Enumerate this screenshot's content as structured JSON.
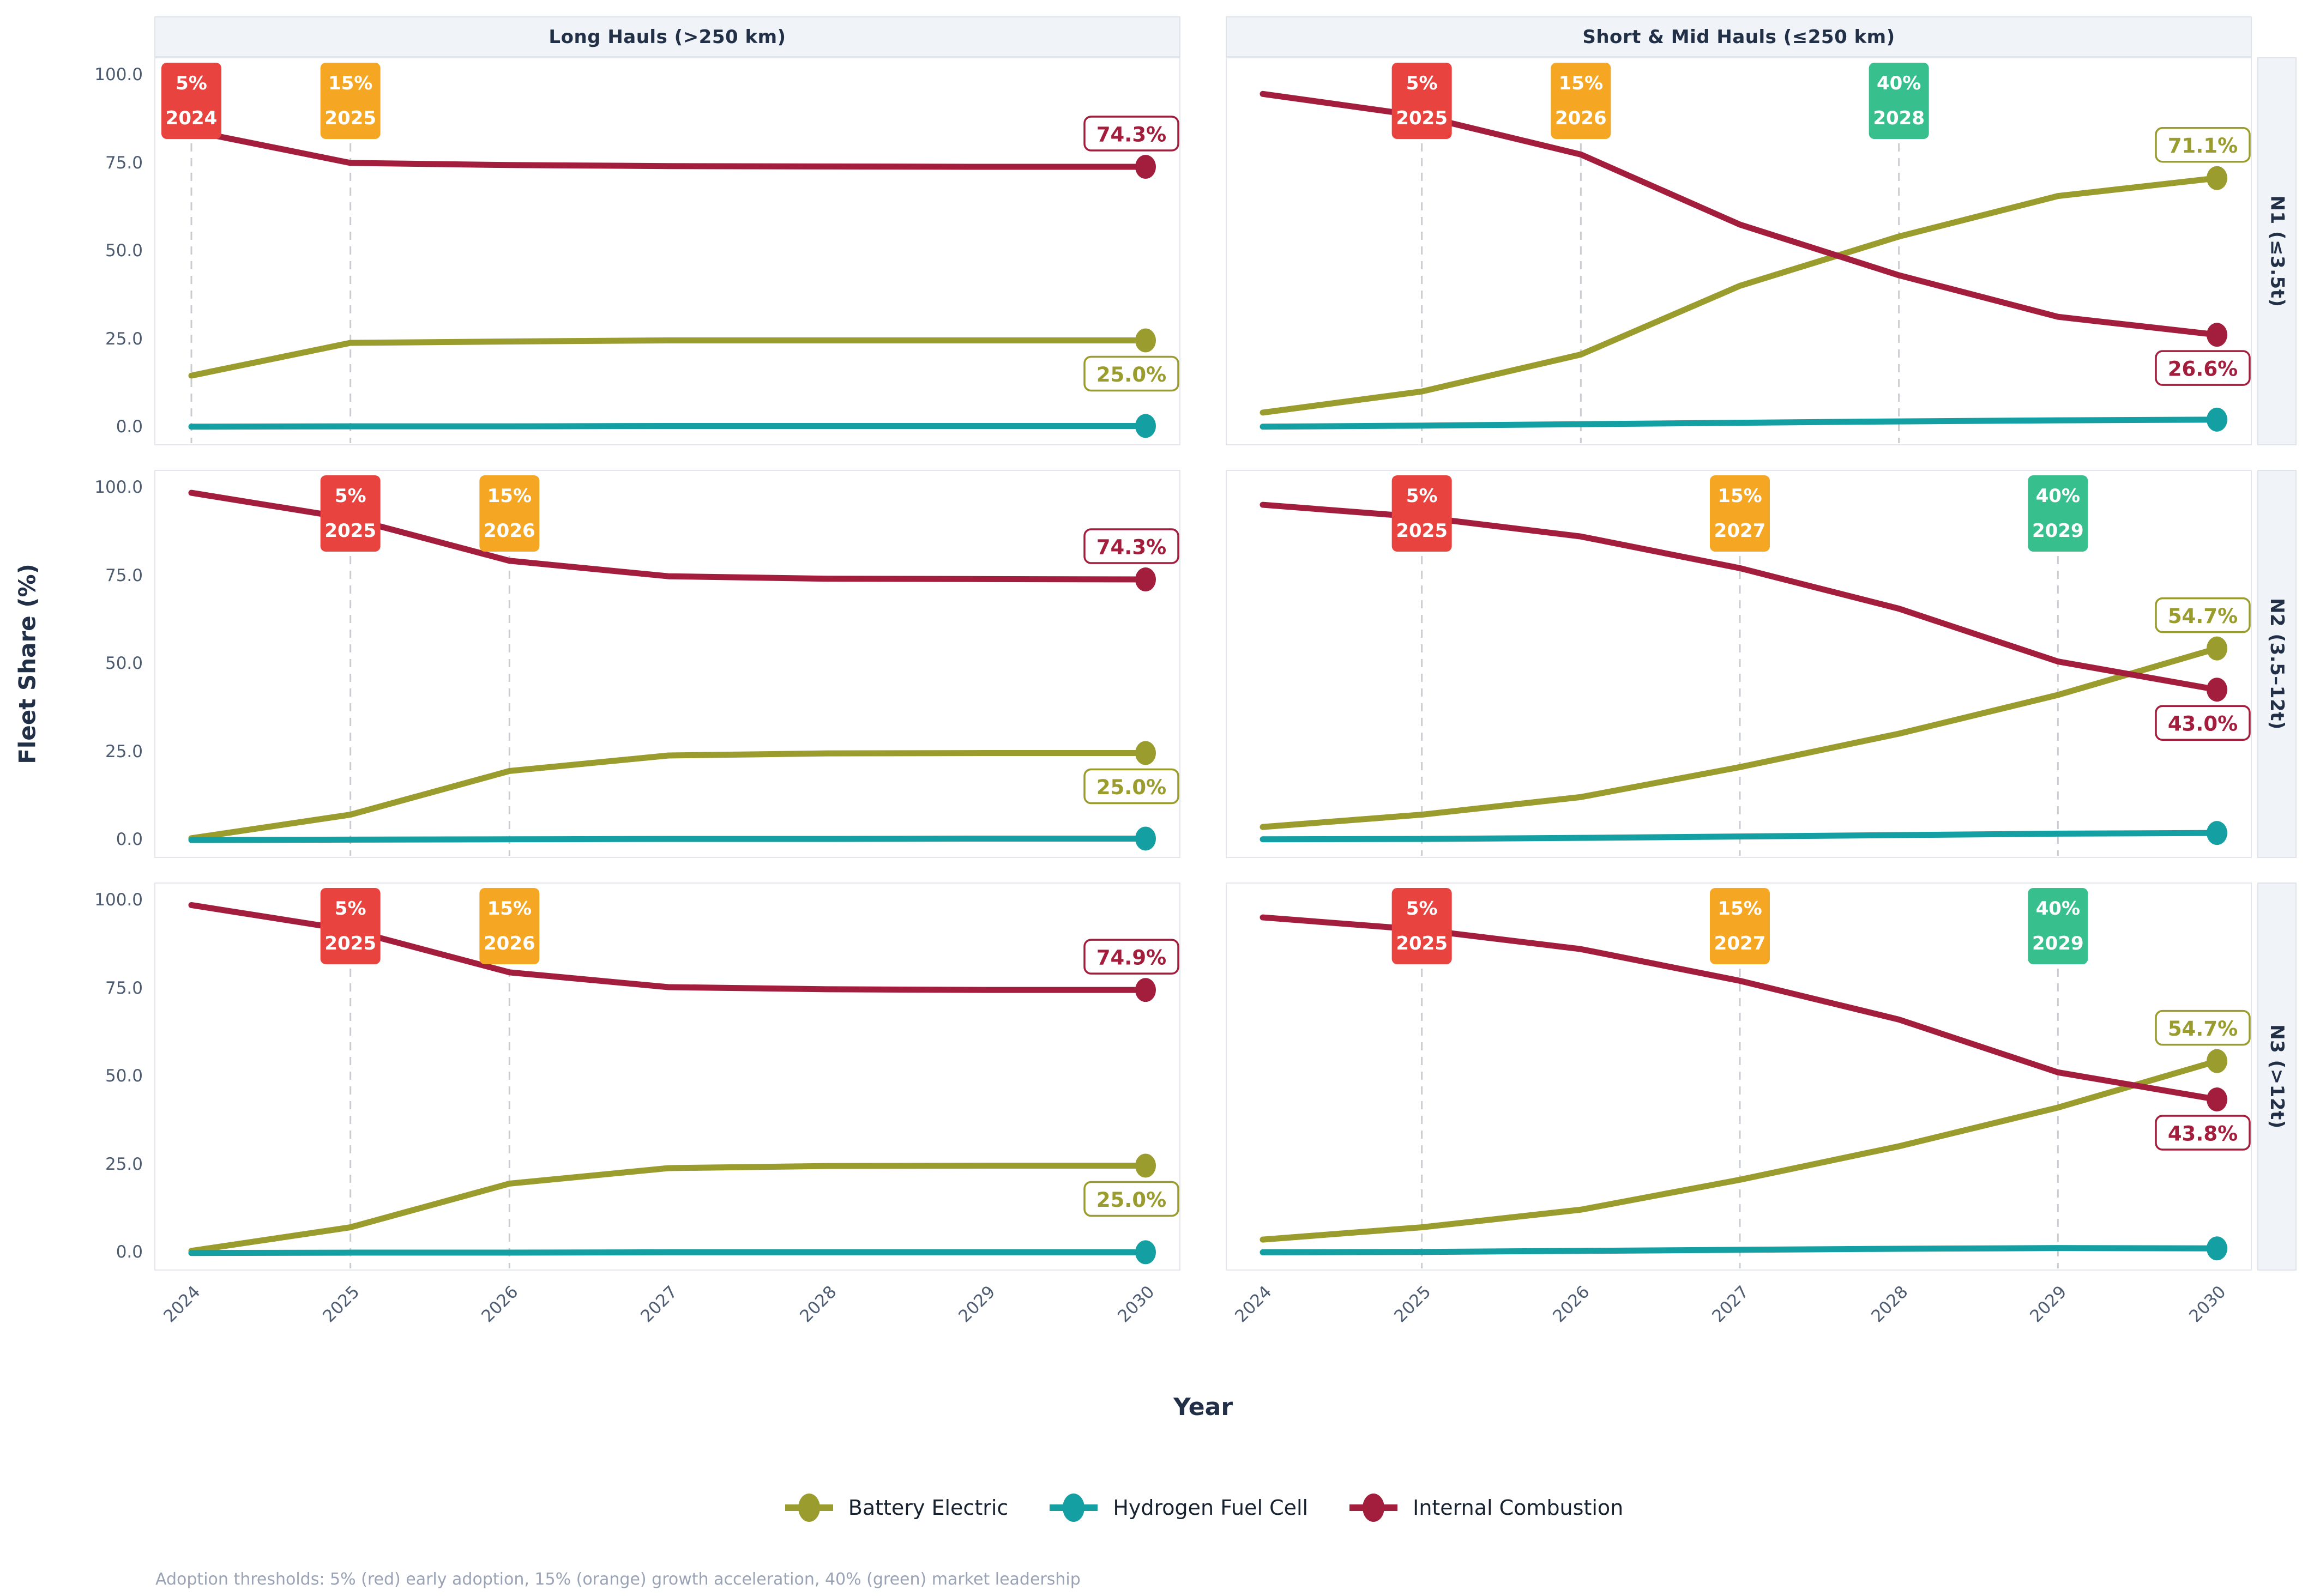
{
  "figure": {
    "y_axis_title": "Fleet Share (%)",
    "x_axis_title": "Year",
    "footnote": "Adoption thresholds: 5% (red) early adoption, 15% (orange) growth acceleration, 40% (green) market leadership",
    "col_titles": [
      "Long Hauls (>250 km)",
      "Short & Mid Hauls (≤250 km)"
    ],
    "row_titles": [
      "N1 (≤3.5t)",
      "N2 (3.5–12t)",
      "N3 (>12t)"
    ],
    "y_ticks": [
      "100.0",
      "75.0",
      "50.0",
      "25.0",
      "0.0"
    ],
    "y_tick_values": [
      100,
      75,
      50,
      25,
      0
    ],
    "x_ticks": [
      "2024",
      "2025",
      "2026",
      "2027",
      "2028",
      "2029",
      "2030"
    ],
    "x_tick_values": [
      2024,
      2025,
      2026,
      2027,
      2028,
      2029,
      2030
    ]
  },
  "legend": [
    {
      "label": "Battery Electric",
      "color": "#9a9c2d"
    },
    {
      "label": "Hydrogen Fuel Cell",
      "color": "#149fa2"
    },
    {
      "label": "Internal Combustion",
      "color": "#a31e3d"
    }
  ],
  "colors": {
    "threshold_red": "#e8433f",
    "threshold_orange": "#f5a623",
    "threshold_green": "#38bf8e",
    "dashed_line": "#c9ccd1",
    "strip_bg": "#f0f3f7",
    "strip_border": "#dfe4ea",
    "panel_border": "#e3e7ed",
    "tick_text": "#4e5c71",
    "title_text": "#223047",
    "footnote_text": "#9aa3b5"
  },
  "chart_data": [
    {
      "type": "line",
      "facet_col": "Long Hauls (>250 km)",
      "facet_row": "N1 (≤3.5t)",
      "x": [
        2024,
        2025,
        2026,
        2027,
        2028,
        2029,
        2030
      ],
      "ylim": [
        0,
        100
      ],
      "series": [
        {
          "name": "Battery Electric",
          "values": [
            15,
            24.3,
            24.7,
            25,
            25,
            25,
            25
          ]
        },
        {
          "name": "Hydrogen Fuel Cell",
          "values": [
            0.5,
            0.6,
            0.6,
            0.7,
            0.7,
            0.7,
            0.7
          ]
        },
        {
          "name": "Internal Combustion",
          "values": [
            84.5,
            75.4,
            74.8,
            74.5,
            74.4,
            74.3,
            74.3
          ]
        }
      ],
      "end_labels": [
        {
          "series": "Internal Combustion",
          "text": "74.3%",
          "value": 74.3,
          "position": "above"
        },
        {
          "series": "Battery Electric",
          "text": "25.0%",
          "value": 25.0,
          "position": "below"
        }
      ],
      "thresholds": [
        {
          "pct": "5%",
          "year": 2024,
          "color": "red"
        },
        {
          "pct": "15%",
          "year": 2025,
          "color": "orange"
        }
      ]
    },
    {
      "type": "line",
      "facet_col": "Short & Mid Hauls (≤250 km)",
      "facet_row": "N1 (≤3.5t)",
      "x": [
        2024,
        2025,
        2026,
        2027,
        2028,
        2029,
        2030
      ],
      "ylim": [
        0,
        100
      ],
      "series": [
        {
          "name": "Battery Electric",
          "values": [
            4.5,
            10.5,
            21,
            40.5,
            54.5,
            66,
            71.1
          ]
        },
        {
          "name": "Hydrogen Fuel Cell",
          "values": [
            0.5,
            0.8,
            1.2,
            1.6,
            2.0,
            2.3,
            2.5
          ]
        },
        {
          "name": "Internal Combustion",
          "values": [
            95,
            88.7,
            77.8,
            57.9,
            43.5,
            31.7,
            26.6
          ]
        }
      ],
      "end_labels": [
        {
          "series": "Battery Electric",
          "text": "71.1%",
          "value": 71.1,
          "position": "above"
        },
        {
          "series": "Internal Combustion",
          "text": "26.6%",
          "value": 26.6,
          "position": "below"
        }
      ],
      "thresholds": [
        {
          "pct": "5%",
          "year": 2025,
          "color": "red"
        },
        {
          "pct": "15%",
          "year": 2026,
          "color": "orange"
        },
        {
          "pct": "40%",
          "year": 2028,
          "color": "green"
        }
      ]
    },
    {
      "type": "line",
      "facet_col": "Long Hauls (>250 km)",
      "facet_row": "N2 (3.5–12t)",
      "x": [
        2024,
        2025,
        2026,
        2027,
        2028,
        2029,
        2030
      ],
      "ylim": [
        0,
        100
      ],
      "series": [
        {
          "name": "Battery Electric",
          "values": [
            0.8,
            7.5,
            19.9,
            24.3,
            24.9,
            25,
            25
          ]
        },
        {
          "name": "Hydrogen Fuel Cell",
          "values": [
            0.3,
            0.4,
            0.5,
            0.6,
            0.6,
            0.7,
            0.7
          ]
        },
        {
          "name": "Internal Combustion",
          "values": [
            98.9,
            91.6,
            79.6,
            75.2,
            74.5,
            74.4,
            74.3
          ]
        }
      ],
      "end_labels": [
        {
          "series": "Internal Combustion",
          "text": "74.3%",
          "value": 74.3,
          "position": "above"
        },
        {
          "series": "Battery Electric",
          "text": "25.0%",
          "value": 25.0,
          "position": "below"
        }
      ],
      "thresholds": [
        {
          "pct": "5%",
          "year": 2025,
          "color": "red"
        },
        {
          "pct": "15%",
          "year": 2026,
          "color": "orange"
        }
      ]
    },
    {
      "type": "line",
      "facet_col": "Short & Mid Hauls (≤250 km)",
      "facet_row": "N2 (3.5–12t)",
      "x": [
        2024,
        2025,
        2026,
        2027,
        2028,
        2029,
        2030
      ],
      "ylim": [
        0,
        100
      ],
      "series": [
        {
          "name": "Battery Electric",
          "values": [
            4,
            7.5,
            12.5,
            21,
            30.5,
            41.5,
            54.7
          ]
        },
        {
          "name": "Hydrogen Fuel Cell",
          "values": [
            0.5,
            0.6,
            0.9,
            1.3,
            1.7,
            2.1,
            2.3
          ]
        },
        {
          "name": "Internal Combustion",
          "values": [
            95.5,
            92,
            86.5,
            77.5,
            66,
            51,
            43.0
          ]
        }
      ],
      "end_labels": [
        {
          "series": "Battery Electric",
          "text": "54.7%",
          "value": 54.7,
          "position": "above"
        },
        {
          "series": "Internal Combustion",
          "text": "43.0%",
          "value": 43.0,
          "position": "below"
        }
      ],
      "thresholds": [
        {
          "pct": "5%",
          "year": 2025,
          "color": "red"
        },
        {
          "pct": "15%",
          "year": 2027,
          "color": "orange"
        },
        {
          "pct": "40%",
          "year": 2029,
          "color": "green"
        }
      ]
    },
    {
      "type": "line",
      "facet_col": "Long Hauls (>250 km)",
      "facet_row": "N3 (>12t)",
      "x": [
        2024,
        2025,
        2026,
        2027,
        2028,
        2029,
        2030
      ],
      "ylim": [
        0,
        100
      ],
      "series": [
        {
          "name": "Battery Electric",
          "values": [
            0.8,
            7.5,
            19.9,
            24.3,
            24.9,
            25,
            25
          ]
        },
        {
          "name": "Hydrogen Fuel Cell",
          "values": [
            0.2,
            0.3,
            0.3,
            0.4,
            0.4,
            0.4,
            0.4
          ]
        },
        {
          "name": "Internal Combustion",
          "values": [
            99,
            91.9,
            79.9,
            75.7,
            75.1,
            74.9,
            74.9
          ]
        }
      ],
      "end_labels": [
        {
          "series": "Internal Combustion",
          "text": "74.9%",
          "value": 74.9,
          "position": "above"
        },
        {
          "series": "Battery Electric",
          "text": "25.0%",
          "value": 25.0,
          "position": "below"
        }
      ],
      "thresholds": [
        {
          "pct": "5%",
          "year": 2025,
          "color": "red"
        },
        {
          "pct": "15%",
          "year": 2026,
          "color": "orange"
        }
      ]
    },
    {
      "type": "line",
      "facet_col": "Short & Mid Hauls (≤250 km)",
      "facet_row": "N3 (>12t)",
      "x": [
        2024,
        2025,
        2026,
        2027,
        2028,
        2029,
        2030
      ],
      "ylim": [
        0,
        100
      ],
      "series": [
        {
          "name": "Battery Electric",
          "values": [
            4,
            7.5,
            12.5,
            21,
            30.5,
            41.5,
            54.7
          ]
        },
        {
          "name": "Hydrogen Fuel Cell",
          "values": [
            0.4,
            0.5,
            0.8,
            1.1,
            1.4,
            1.6,
            1.5
          ]
        },
        {
          "name": "Internal Combustion",
          "values": [
            95.5,
            92,
            86.5,
            77.5,
            66.5,
            51.5,
            43.8
          ]
        }
      ],
      "end_labels": [
        {
          "series": "Battery Electric",
          "text": "54.7%",
          "value": 54.7,
          "position": "above"
        },
        {
          "series": "Internal Combustion",
          "text": "43.8%",
          "value": 43.8,
          "position": "below"
        }
      ],
      "thresholds": [
        {
          "pct": "5%",
          "year": 2025,
          "color": "red"
        },
        {
          "pct": "15%",
          "year": 2027,
          "color": "orange"
        },
        {
          "pct": "40%",
          "year": 2029,
          "color": "green"
        }
      ]
    }
  ]
}
